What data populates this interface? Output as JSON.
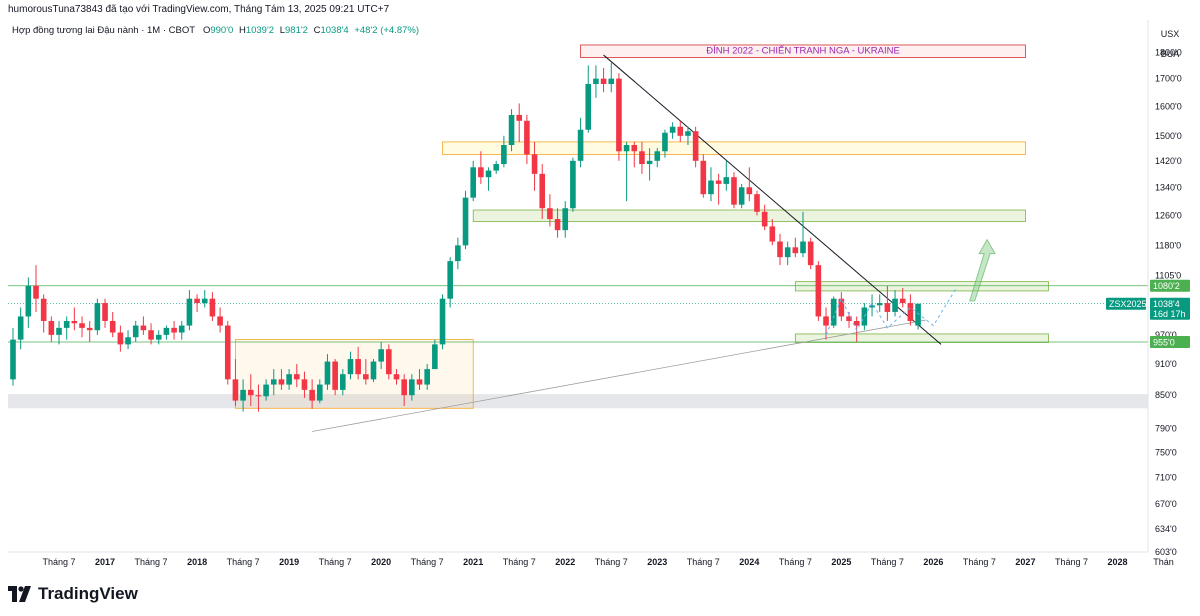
{
  "header": {
    "published_by": "humorousTuna73843 đã tạo với TradingView.com, Tháng Tám 13, 2025 09:21 UTC+7",
    "symbol_desc": "Hợp đồng tương lai Đậu nành · 1M · CBOT",
    "open_label": "O",
    "open_value": "990'0",
    "high_label": "H",
    "high_value": "1039'2",
    "low_label": "L",
    "low_value": "981'2",
    "close_label": "C",
    "close_value": "1038'4",
    "change": "+48'2 (+4.87%)"
  },
  "right_panel": {
    "currency": "USX",
    "mode": "BUA"
  },
  "brand": {
    "name": "TradingView"
  },
  "colors": {
    "up": "#089981",
    "down": "#f23645",
    "axis_text": "#131722",
    "grid": "#f0f3fa"
  },
  "chart_data": {
    "type": "candlestick",
    "title": "Hợp đồng tương lai Đậu nành · 1M · CBOT",
    "x_axis_labels": [
      "Tháng 7",
      "2017",
      "Tháng 7",
      "2018",
      "Tháng 7",
      "2019",
      "Tháng 7",
      "2020",
      "Tháng 7",
      "2021",
      "Tháng 7",
      "2022",
      "Tháng 7",
      "2023",
      "Tháng 7",
      "2024",
      "Tháng 7",
      "2025",
      "Tháng 7",
      "2026",
      "Tháng 7",
      "2027",
      "Tháng 7",
      "2028",
      "Thán"
    ],
    "y_axis_ticks": [
      "1800'0",
      "1700'0",
      "1600'0",
      "1500'0",
      "1420'0",
      "1340'0",
      "1260'0",
      "1180'0",
      "1105'0",
      "970'0",
      "910'0",
      "850'0",
      "790'0",
      "750'0",
      "710'0",
      "670'0",
      "634'0",
      "603'0"
    ],
    "y_scale": "log",
    "y_range": [
      603,
      1850
    ],
    "x_range": [
      "2016-01",
      "2028-12"
    ],
    "start_month": "2016-01",
    "ohlc": [
      [
        880,
        985,
        868,
        960
      ],
      [
        960,
        1030,
        940,
        1010
      ],
      [
        1010,
        1100,
        985,
        1080
      ],
      [
        1080,
        1130,
        1020,
        1050
      ],
      [
        1050,
        1060,
        975,
        1000
      ],
      [
        1000,
        1010,
        955,
        970
      ],
      [
        970,
        1000,
        950,
        985
      ],
      [
        985,
        1010,
        960,
        1000
      ],
      [
        1000,
        1030,
        980,
        995
      ],
      [
        995,
        1010,
        965,
        985
      ],
      [
        985,
        1000,
        955,
        980
      ],
      [
        980,
        1050,
        970,
        1040
      ],
      [
        1040,
        1050,
        985,
        1000
      ],
      [
        1000,
        1020,
        965,
        975
      ],
      [
        975,
        990,
        935,
        950
      ],
      [
        950,
        980,
        940,
        965
      ],
      [
        965,
        1000,
        955,
        990
      ],
      [
        990,
        1010,
        970,
        980
      ],
      [
        980,
        995,
        950,
        960
      ],
      [
        960,
        980,
        950,
        970
      ],
      [
        970,
        990,
        960,
        985
      ],
      [
        985,
        1000,
        960,
        975
      ],
      [
        975,
        1000,
        960,
        990
      ],
      [
        990,
        1070,
        980,
        1050
      ],
      [
        1050,
        1060,
        1020,
        1040
      ],
      [
        1040,
        1070,
        1030,
        1050
      ],
      [
        1050,
        1065,
        1000,
        1010
      ],
      [
        1010,
        1030,
        975,
        990
      ],
      [
        990,
        1000,
        870,
        880
      ],
      [
        880,
        920,
        830,
        840
      ],
      [
        840,
        880,
        820,
        860
      ],
      [
        860,
        890,
        830,
        850
      ],
      [
        850,
        870,
        820,
        848
      ],
      [
        848,
        880,
        840,
        870
      ],
      [
        870,
        900,
        850,
        880
      ],
      [
        880,
        900,
        860,
        870
      ],
      [
        870,
        900,
        860,
        890
      ],
      [
        890,
        910,
        865,
        880
      ],
      [
        880,
        895,
        845,
        860
      ],
      [
        860,
        880,
        825,
        840
      ],
      [
        840,
        880,
        835,
        870
      ],
      [
        870,
        930,
        860,
        915
      ],
      [
        915,
        920,
        850,
        860
      ],
      [
        860,
        900,
        850,
        890
      ],
      [
        890,
        935,
        880,
        920
      ],
      [
        920,
        945,
        880,
        890
      ],
      [
        890,
        920,
        870,
        880
      ],
      [
        880,
        920,
        875,
        915
      ],
      [
        915,
        955,
        900,
        940
      ],
      [
        940,
        950,
        880,
        890
      ],
      [
        890,
        900,
        870,
        880
      ],
      [
        880,
        890,
        830,
        850
      ],
      [
        850,
        890,
        840,
        880
      ],
      [
        880,
        900,
        860,
        870
      ],
      [
        870,
        910,
        860,
        900
      ],
      [
        900,
        960,
        900,
        950
      ],
      [
        950,
        1060,
        940,
        1050
      ],
      [
        1050,
        1150,
        1030,
        1140
      ],
      [
        1140,
        1200,
        1120,
        1180
      ],
      [
        1180,
        1330,
        1170,
        1310
      ],
      [
        1310,
        1420,
        1300,
        1400
      ],
      [
        1400,
        1450,
        1350,
        1370
      ],
      [
        1370,
        1400,
        1330,
        1390
      ],
      [
        1390,
        1420,
        1380,
        1410
      ],
      [
        1410,
        1500,
        1400,
        1470
      ],
      [
        1470,
        1590,
        1450,
        1570
      ],
      [
        1570,
        1610,
        1480,
        1550
      ],
      [
        1550,
        1570,
        1410,
        1440
      ],
      [
        1440,
        1480,
        1330,
        1380
      ],
      [
        1380,
        1410,
        1250,
        1280
      ],
      [
        1280,
        1320,
        1230,
        1250
      ],
      [
        1250,
        1280,
        1200,
        1220
      ],
      [
        1220,
        1300,
        1200,
        1280
      ],
      [
        1280,
        1430,
        1270,
        1420
      ],
      [
        1420,
        1560,
        1400,
        1520
      ],
      [
        1520,
        1750,
        1510,
        1680
      ],
      [
        1680,
        1750,
        1630,
        1700
      ],
      [
        1700,
        1740,
        1650,
        1680
      ],
      [
        1680,
        1760,
        1650,
        1700
      ],
      [
        1700,
        1720,
        1420,
        1450
      ],
      [
        1450,
        1480,
        1300,
        1470
      ],
      [
        1470,
        1480,
        1400,
        1450
      ],
      [
        1450,
        1480,
        1380,
        1410
      ],
      [
        1410,
        1460,
        1360,
        1420
      ],
      [
        1420,
        1460,
        1400,
        1450
      ],
      [
        1450,
        1520,
        1430,
        1510
      ],
      [
        1510,
        1545,
        1490,
        1530
      ],
      [
        1530,
        1550,
        1480,
        1500
      ],
      [
        1500,
        1530,
        1470,
        1515
      ],
      [
        1515,
        1530,
        1400,
        1420
      ],
      [
        1420,
        1440,
        1310,
        1320
      ],
      [
        1320,
        1400,
        1300,
        1360
      ],
      [
        1360,
        1380,
        1290,
        1350
      ],
      [
        1350,
        1420,
        1330,
        1370
      ],
      [
        1370,
        1385,
        1280,
        1290
      ],
      [
        1290,
        1350,
        1280,
        1340
      ],
      [
        1340,
        1400,
        1300,
        1320
      ],
      [
        1320,
        1330,
        1260,
        1270
      ],
      [
        1270,
        1290,
        1220,
        1230
      ],
      [
        1230,
        1250,
        1180,
        1190
      ],
      [
        1190,
        1210,
        1130,
        1150
      ],
      [
        1150,
        1190,
        1130,
        1175
      ],
      [
        1175,
        1200,
        1150,
        1160
      ],
      [
        1160,
        1270,
        1150,
        1190
      ],
      [
        1190,
        1200,
        1120,
        1130
      ],
      [
        1130,
        1140,
        1000,
        1010
      ],
      [
        1010,
        1030,
        960,
        990
      ],
      [
        990,
        1055,
        985,
        1050
      ],
      [
        1050,
        1065,
        1000,
        1010
      ],
      [
        1010,
        1020,
        985,
        1000
      ],
      [
        1000,
        1010,
        955,
        990
      ],
      [
        990,
        1040,
        980,
        1030
      ],
      [
        1030,
        1060,
        1010,
        1035
      ],
      [
        1035,
        1060,
        1020,
        1040
      ],
      [
        1040,
        1080,
        1000,
        1020
      ],
      [
        1020,
        1070,
        1010,
        1050
      ],
      [
        1050,
        1075,
        1030,
        1040
      ],
      [
        1040,
        1060,
        990,
        1000
      ],
      [
        990,
        1039.25,
        981.25,
        1038.5
      ]
    ],
    "annotations": {
      "title_box": "ĐỈNH 2022 - CHIẾN TRANH NGA - UKRAINE",
      "symbol_tag": "ZSX2025",
      "price_tag": "1038'4",
      "countdown": "16d 17h",
      "level_high": "1080'2",
      "level_low": "955'0"
    },
    "zones": [
      {
        "from": "2022-03",
        "to": "2027-01",
        "low": 1780,
        "high": 1830,
        "color": "red"
      },
      {
        "from": "2020-09",
        "to": "2027-01",
        "low": 1440,
        "high": 1480,
        "color": "yellow"
      },
      {
        "from": "2021-01",
        "to": "2027-01",
        "low": 1243,
        "high": 1275,
        "color": "green"
      },
      {
        "from": "2024-07",
        "to": "2027-04",
        "low": 1068,
        "high": 1090,
        "color": "green"
      },
      {
        "from": "2024-07",
        "to": "2027-04",
        "low": 954,
        "high": 972,
        "color": "green"
      },
      {
        "from": "2018-06",
        "to": "2021-01",
        "low": 826,
        "high": 960,
        "color": "orange"
      }
    ],
    "trendlines": [
      {
        "from": [
          "2022-06",
          1790
        ],
        "to": [
          "2026-02",
          950
        ],
        "color": "black"
      },
      {
        "from": [
          "2019-04",
          785
        ],
        "to": [
          "2025-12",
          1002
        ],
        "color": "gray"
      }
    ],
    "grid": true
  }
}
